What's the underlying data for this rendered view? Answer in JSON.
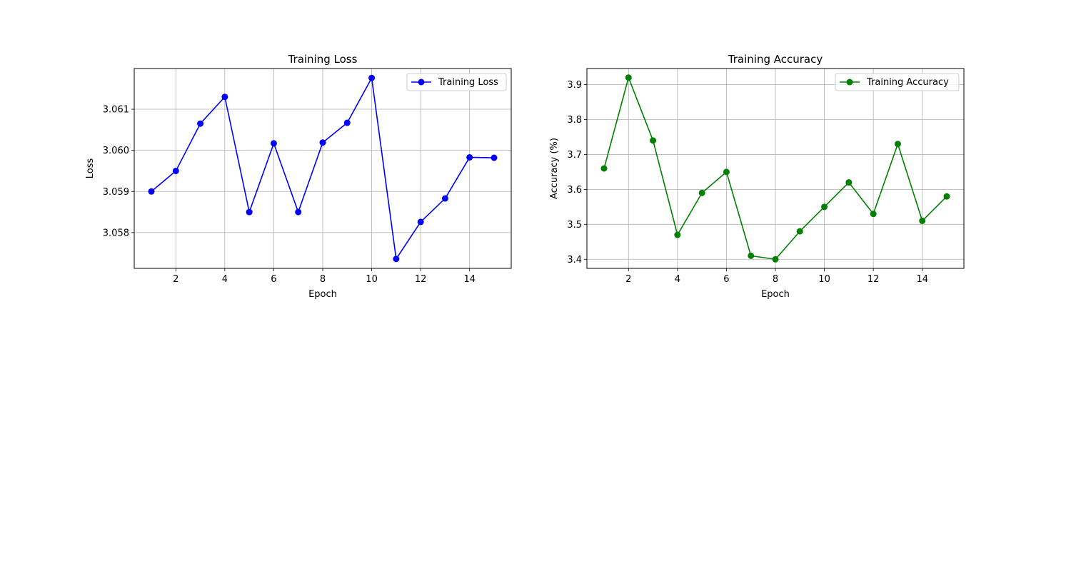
{
  "chart_data": [
    {
      "type": "line",
      "title": "Training Loss",
      "xlabel": "Epoch",
      "ylabel": "Loss",
      "x": [
        1,
        2,
        3,
        4,
        5,
        6,
        7,
        8,
        9,
        10,
        11,
        12,
        13,
        14,
        15
      ],
      "series": [
        {
          "name": "Training Loss",
          "color": "#0000ff",
          "marker": "circle",
          "values": [
            3.059,
            3.0595,
            3.06065,
            3.0613,
            3.0585,
            3.06017,
            3.0585,
            3.06019,
            3.06067,
            3.06176,
            3.05736,
            3.05826,
            3.05883,
            3.05983,
            3.05982
          ]
        }
      ],
      "xlim": [
        0.3,
        15.7
      ],
      "ylim": [
        3.05713,
        3.06199
      ],
      "xticks": [
        2,
        4,
        6,
        8,
        10,
        12,
        14
      ],
      "yticks": [
        3.058,
        3.059,
        3.06,
        3.061
      ],
      "yticklabels": [
        "3.058",
        "3.059",
        "3.060",
        "3.061"
      ],
      "grid": true,
      "legend": "upper right"
    },
    {
      "type": "line",
      "title": "Training Accuracy",
      "xlabel": "Epoch",
      "ylabel": "Accuracy (%)",
      "x": [
        1,
        2,
        3,
        4,
        5,
        6,
        7,
        8,
        9,
        10,
        11,
        12,
        13,
        14,
        15
      ],
      "series": [
        {
          "name": "Training Accuracy",
          "color": "#008000",
          "marker": "circle",
          "values": [
            3.66,
            3.92,
            3.74,
            3.47,
            3.59,
            3.65,
            3.41,
            3.4,
            3.48,
            3.55,
            3.62,
            3.53,
            3.73,
            3.51,
            3.58
          ]
        }
      ],
      "xlim": [
        0.3,
        15.7
      ],
      "ylim": [
        3.374,
        3.946
      ],
      "xticks": [
        2,
        4,
        6,
        8,
        10,
        12,
        14
      ],
      "yticks": [
        3.4,
        3.5,
        3.6,
        3.7,
        3.8,
        3.9
      ],
      "yticklabels": [
        "3.4",
        "3.5",
        "3.6",
        "3.7",
        "3.8",
        "3.9"
      ],
      "grid": true,
      "legend": "upper right"
    }
  ]
}
